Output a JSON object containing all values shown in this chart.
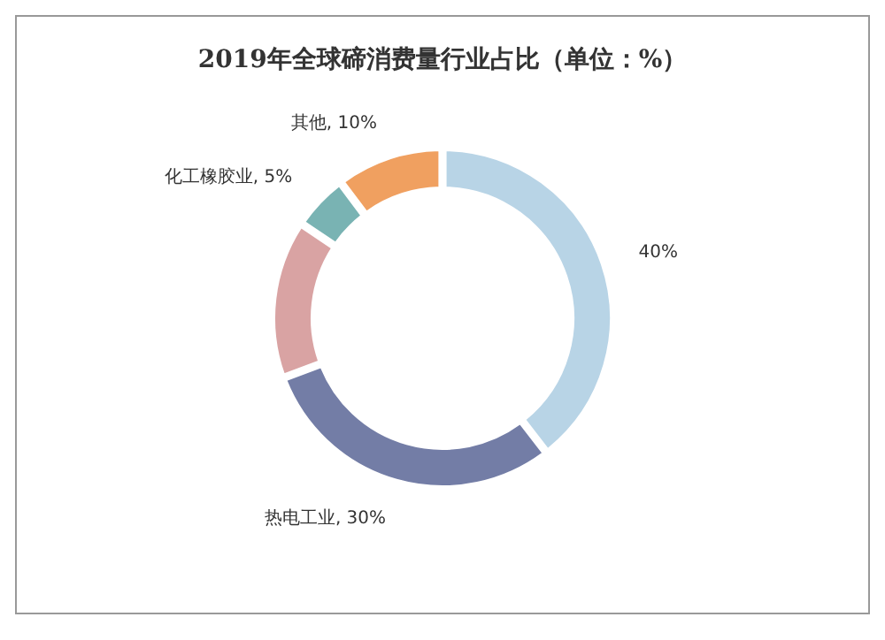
{
  "chart_data": {
    "type": "donut",
    "title": "2019年全球碲消费量行业占比（单位：%）",
    "categories": [
      null,
      null,
      null,
      null,
      null
    ],
    "values": [
      40,
      30,
      15,
      5,
      10
    ],
    "colors": [
      "#b8d4e6",
      "#737da6",
      "#d9a3a3",
      "#79b3b3",
      "#f0a060"
    ],
    "value_labels": [
      "40%",
      "热电工业, 30%",
      null,
      "化工橡胶业, 5%",
      "其他, 10%"
    ]
  }
}
